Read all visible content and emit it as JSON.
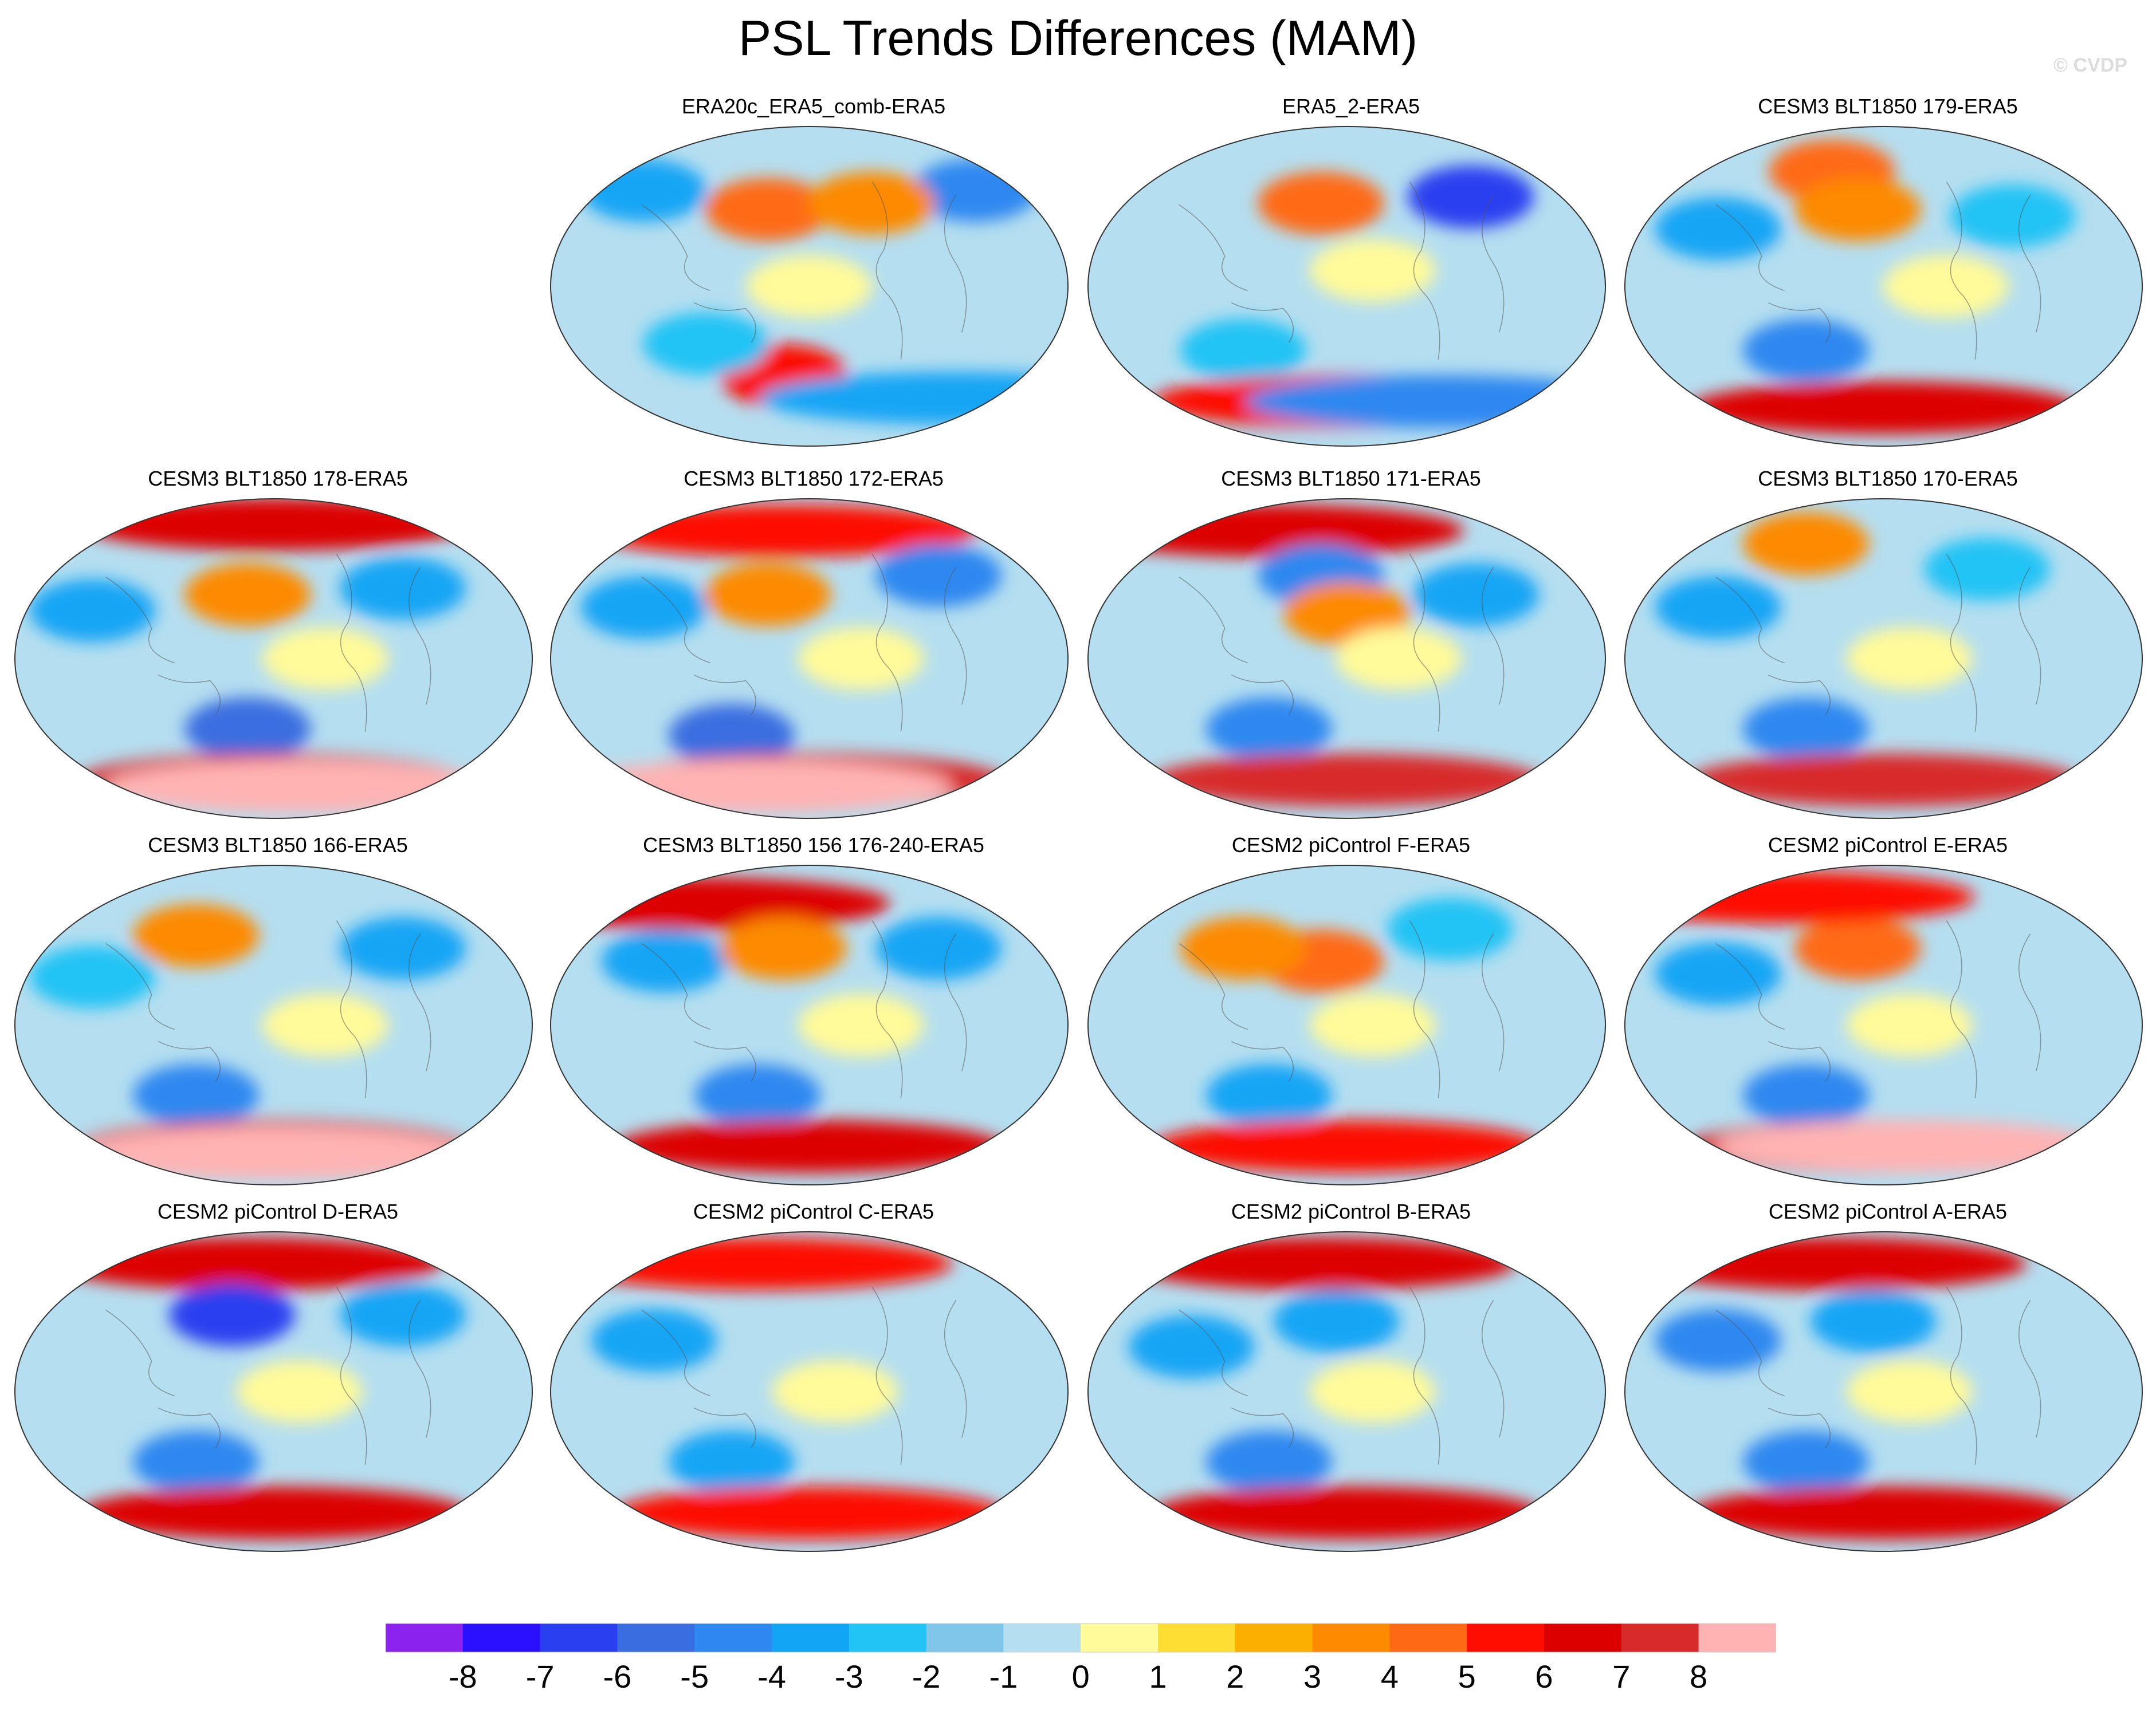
{
  "figure": {
    "title": "PSL Trends Differences (MAM)",
    "watermark": "© CVDP"
  },
  "panels": [
    {
      "title": "ERA20c_ERA5_comb-ERA5",
      "row": 0,
      "col": 1,
      "features": [
        {
          "level": -4,
          "lon": 0.18,
          "lat": 0.2
        },
        {
          "level": -5,
          "lon": 0.82,
          "lat": 0.2
        },
        {
          "level": 4,
          "lon": 0.42,
          "lat": 0.26
        },
        {
          "level": 3,
          "lon": 0.62,
          "lat": 0.24
        },
        {
          "level": 0,
          "lon": 0.5,
          "lat": 0.5
        },
        {
          "level": 5,
          "lon": 0.45,
          "lat": 0.78
        },
        {
          "level": -3,
          "lon": 0.3,
          "lat": 0.68
        },
        {
          "level": -4,
          "lon": 0.78,
          "lat": 0.85
        }
      ]
    },
    {
      "title": "ERA5_2-ERA5",
      "row": 0,
      "col": 2,
      "features": [
        {
          "level": 4,
          "lon": 0.45,
          "lat": 0.24
        },
        {
          "level": -7,
          "lon": 0.74,
          "lat": 0.22
        },
        {
          "level": 0,
          "lon": 0.55,
          "lat": 0.45
        },
        {
          "level": -3,
          "lon": 0.3,
          "lat": 0.7
        },
        {
          "level": 5,
          "lon": 0.5,
          "lat": 0.86
        },
        {
          "level": -5,
          "lon": 0.68,
          "lat": 0.86
        }
      ]
    },
    {
      "title": "CESM3 BLT1850 179-ERA5",
      "row": 0,
      "col": 3,
      "features": [
        {
          "level": 4,
          "lon": 0.4,
          "lat": 0.14
        },
        {
          "level": -4,
          "lon": 0.18,
          "lat": 0.32
        },
        {
          "level": 3,
          "lon": 0.45,
          "lat": 0.26
        },
        {
          "level": -3,
          "lon": 0.75,
          "lat": 0.28
        },
        {
          "level": 0,
          "lon": 0.62,
          "lat": 0.5
        },
        {
          "level": -5,
          "lon": 0.35,
          "lat": 0.7
        },
        {
          "level": 6,
          "lon": 0.5,
          "lat": 0.88
        }
      ]
    },
    {
      "title": "CESM3 BLT1850 178-ERA5",
      "row": 1,
      "col": 0,
      "features": [
        {
          "level": 6,
          "lon": 0.5,
          "lat": 0.08
        },
        {
          "level": -4,
          "lon": 0.15,
          "lat": 0.35
        },
        {
          "level": 3,
          "lon": 0.45,
          "lat": 0.3
        },
        {
          "level": -4,
          "lon": 0.75,
          "lat": 0.28
        },
        {
          "level": 0,
          "lon": 0.6,
          "lat": 0.5
        },
        {
          "level": -6,
          "lon": 0.45,
          "lat": 0.72
        },
        {
          "level": 7,
          "lon": 0.5,
          "lat": 0.88
        },
        {
          "level": 8,
          "lon": 0.55,
          "lat": 0.9
        }
      ]
    },
    {
      "title": "CESM3 BLT1850 172-ERA5",
      "row": 1,
      "col": 1,
      "features": [
        {
          "level": 5,
          "lon": 0.45,
          "lat": 0.1
        },
        {
          "level": -4,
          "lon": 0.18,
          "lat": 0.34
        },
        {
          "level": 3,
          "lon": 0.42,
          "lat": 0.3
        },
        {
          "level": -5,
          "lon": 0.75,
          "lat": 0.24
        },
        {
          "level": 0,
          "lon": 0.6,
          "lat": 0.5
        },
        {
          "level": -6,
          "lon": 0.35,
          "lat": 0.74
        },
        {
          "level": 7,
          "lon": 0.5,
          "lat": 0.88
        },
        {
          "level": 8,
          "lon": 0.4,
          "lat": 0.9
        }
      ]
    },
    {
      "title": "CESM3 BLT1850 171-ERA5",
      "row": 1,
      "col": 2,
      "features": [
        {
          "level": 6,
          "lon": 0.35,
          "lat": 0.1
        },
        {
          "level": -5,
          "lon": 0.45,
          "lat": 0.24
        },
        {
          "level": -4,
          "lon": 0.75,
          "lat": 0.3
        },
        {
          "level": 3,
          "lon": 0.5,
          "lat": 0.36
        },
        {
          "level": 0,
          "lon": 0.6,
          "lat": 0.5
        },
        {
          "level": -5,
          "lon": 0.35,
          "lat": 0.72
        },
        {
          "level": 7,
          "lon": 0.5,
          "lat": 0.88
        }
      ]
    },
    {
      "title": "CESM3 BLT1850 170-ERA5",
      "row": 1,
      "col": 3,
      "features": [
        {
          "level": 3,
          "lon": 0.35,
          "lat": 0.14
        },
        {
          "level": -4,
          "lon": 0.18,
          "lat": 0.34
        },
        {
          "level": -3,
          "lon": 0.7,
          "lat": 0.22
        },
        {
          "level": 0,
          "lon": 0.55,
          "lat": 0.5
        },
        {
          "level": -5,
          "lon": 0.35,
          "lat": 0.72
        },
        {
          "level": 7,
          "lon": 0.5,
          "lat": 0.88
        }
      ]
    },
    {
      "title": "CESM3 BLT1850 166-ERA5",
      "row": 2,
      "col": 0,
      "features": [
        {
          "level": 3,
          "lon": 0.35,
          "lat": 0.22
        },
        {
          "level": -4,
          "lon": 0.75,
          "lat": 0.26
        },
        {
          "level": -3,
          "lon": 0.15,
          "lat": 0.35
        },
        {
          "level": 0,
          "lon": 0.6,
          "lat": 0.5
        },
        {
          "level": -5,
          "lon": 0.35,
          "lat": 0.72
        },
        {
          "level": 7,
          "lon": 0.5,
          "lat": 0.88
        },
        {
          "level": 8,
          "lon": 0.5,
          "lat": 0.9
        }
      ]
    },
    {
      "title": "CESM3 BLT1850 156 176-240-ERA5",
      "row": 2,
      "col": 1,
      "features": [
        {
          "level": 6,
          "lon": 0.28,
          "lat": 0.12
        },
        {
          "level": -4,
          "lon": 0.22,
          "lat": 0.3
        },
        {
          "level": 3,
          "lon": 0.45,
          "lat": 0.26
        },
        {
          "level": -4,
          "lon": 0.75,
          "lat": 0.26
        },
        {
          "level": 0,
          "lon": 0.6,
          "lat": 0.5
        },
        {
          "level": -5,
          "lon": 0.4,
          "lat": 0.72
        },
        {
          "level": 6,
          "lon": 0.5,
          "lat": 0.88
        }
      ]
    },
    {
      "title": "CESM2 piControl F-ERA5",
      "row": 2,
      "col": 2,
      "features": [
        {
          "level": 4,
          "lon": 0.45,
          "lat": 0.3
        },
        {
          "level": 3,
          "lon": 0.3,
          "lat": 0.26
        },
        {
          "level": -3,
          "lon": 0.7,
          "lat": 0.2
        },
        {
          "level": 0,
          "lon": 0.55,
          "lat": 0.5
        },
        {
          "level": -4,
          "lon": 0.35,
          "lat": 0.72
        },
        {
          "level": 5,
          "lon": 0.5,
          "lat": 0.88
        }
      ]
    },
    {
      "title": "CESM2 piControl E-ERA5",
      "row": 2,
      "col": 3,
      "features": [
        {
          "level": 4,
          "lon": 0.45,
          "lat": 0.26
        },
        {
          "level": 5,
          "lon": 0.3,
          "lat": 0.1
        },
        {
          "level": -4,
          "lon": 0.18,
          "lat": 0.34
        },
        {
          "level": 0,
          "lon": 0.55,
          "lat": 0.5
        },
        {
          "level": -5,
          "lon": 0.35,
          "lat": 0.72
        },
        {
          "level": 6,
          "lon": 0.5,
          "lat": 0.88
        },
        {
          "level": 8,
          "lon": 0.55,
          "lat": 0.88
        }
      ]
    },
    {
      "title": "CESM2 piControl D-ERA5",
      "row": 3,
      "col": 0,
      "features": [
        {
          "level": 6,
          "lon": 0.45,
          "lat": 0.1
        },
        {
          "level": -7,
          "lon": 0.42,
          "lat": 0.26
        },
        {
          "level": -4,
          "lon": 0.75,
          "lat": 0.26
        },
        {
          "level": 0,
          "lon": 0.55,
          "lat": 0.5
        },
        {
          "level": -5,
          "lon": 0.35,
          "lat": 0.72
        },
        {
          "level": 6,
          "lon": 0.5,
          "lat": 0.88
        }
      ]
    },
    {
      "title": "CESM2 piControl C-ERA5",
      "row": 3,
      "col": 1,
      "features": [
        {
          "level": 5,
          "lon": 0.4,
          "lat": 0.1
        },
        {
          "level": -4,
          "lon": 0.2,
          "lat": 0.34
        },
        {
          "level": 0,
          "lon": 0.55,
          "lat": 0.5
        },
        {
          "level": -4,
          "lon": 0.35,
          "lat": 0.72
        },
        {
          "level": 5,
          "lon": 0.5,
          "lat": 0.88
        }
      ]
    },
    {
      "title": "CESM2 piControl B-ERA5",
      "row": 3,
      "col": 2,
      "features": [
        {
          "level": 6,
          "lon": 0.45,
          "lat": 0.1
        },
        {
          "level": -4,
          "lon": 0.48,
          "lat": 0.28
        },
        {
          "level": -4,
          "lon": 0.2,
          "lat": 0.36
        },
        {
          "level": 0,
          "lon": 0.55,
          "lat": 0.5
        },
        {
          "level": -5,
          "lon": 0.35,
          "lat": 0.72
        },
        {
          "level": 6,
          "lon": 0.5,
          "lat": 0.88
        }
      ]
    },
    {
      "title": "CESM2 piControl A-ERA5",
      "row": 3,
      "col": 3,
      "features": [
        {
          "level": 6,
          "lon": 0.4,
          "lat": 0.1
        },
        {
          "level": -5,
          "lon": 0.18,
          "lat": 0.34
        },
        {
          "level": -4,
          "lon": 0.48,
          "lat": 0.28
        },
        {
          "level": 0,
          "lon": 0.55,
          "lat": 0.5
        },
        {
          "level": -5,
          "lon": 0.35,
          "lat": 0.72
        },
        {
          "level": 6,
          "lon": 0.5,
          "lat": 0.88
        }
      ]
    }
  ],
  "colorbar": {
    "labels": [
      "-8",
      "-7",
      "-6",
      "-5",
      "-4",
      "-3",
      "-2",
      "-1",
      "0",
      "1",
      "2",
      "3",
      "4",
      "5",
      "6",
      "7",
      "8"
    ],
    "colors": [
      "#8b22ee",
      "#2a10ff",
      "#2a3ff0",
      "#3a6ee0",
      "#2e88f0",
      "#13a5f5",
      "#22c3f5",
      "#80c5ea",
      "#b5def0",
      "#fffa9a",
      "#fede32",
      "#fdaf00",
      "#fd8a00",
      "#fe6a14",
      "#fd0e00",
      "#dd0000",
      "#d82a2a",
      "#ffb3b3"
    ],
    "levels": [
      -9,
      -8,
      -7,
      -6,
      -5,
      -4,
      -3,
      -2,
      -1,
      0,
      1,
      2,
      3,
      4,
      5,
      6,
      7,
      8
    ]
  }
}
